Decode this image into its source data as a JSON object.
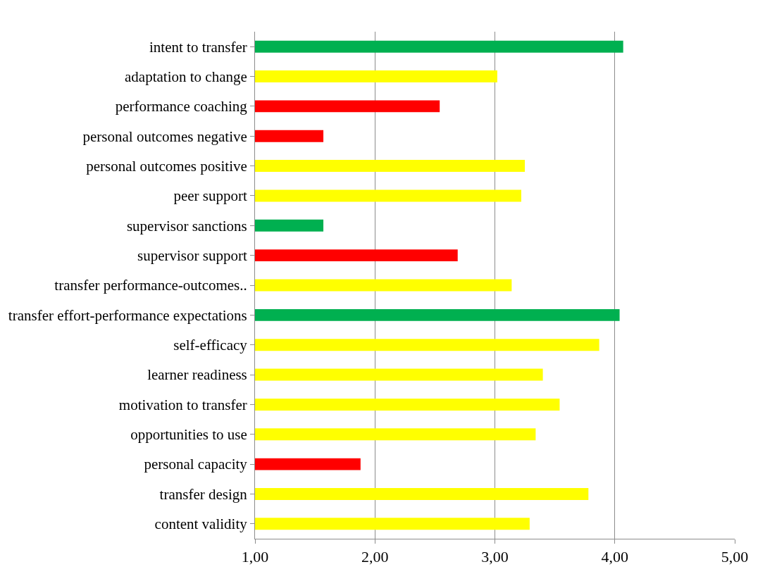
{
  "chart_data": {
    "type": "bar",
    "orientation": "horizontal",
    "categories": [
      "intent to transfer",
      "adaptation to change",
      "performance coaching",
      "personal outcomes negative",
      "personal outcomes positive",
      "peer support",
      "supervisor sanctions",
      "supervisor support",
      "transfer performance-outcomes..",
      "transfer effort-performance expectations",
      "self-efficacy",
      "learner readiness",
      "motivation to transfer",
      "opportunities to use",
      "personal capacity",
      "transfer design",
      "content validity"
    ],
    "values": [
      4.07,
      3.02,
      2.54,
      1.57,
      3.25,
      3.22,
      1.57,
      2.69,
      3.14,
      4.04,
      3.87,
      3.4,
      3.54,
      3.34,
      1.88,
      3.78,
      3.29
    ],
    "colors": [
      "#00b050",
      "#ffff00",
      "#ff0000",
      "#ff0000",
      "#ffff00",
      "#ffff00",
      "#00b050",
      "#ff0000",
      "#ffff00",
      "#00b050",
      "#ffff00",
      "#ffff00",
      "#ffff00",
      "#ffff00",
      "#ff0000",
      "#ffff00",
      "#ffff00"
    ],
    "xlim": [
      1,
      5
    ],
    "xticks": [
      {
        "value": 1,
        "label": "1,00"
      },
      {
        "value": 2,
        "label": "2,00"
      },
      {
        "value": 3,
        "label": "3,00"
      },
      {
        "value": 4,
        "label": "4,00"
      },
      {
        "value": 5,
        "label": "5,00"
      }
    ],
    "grid": "x"
  }
}
